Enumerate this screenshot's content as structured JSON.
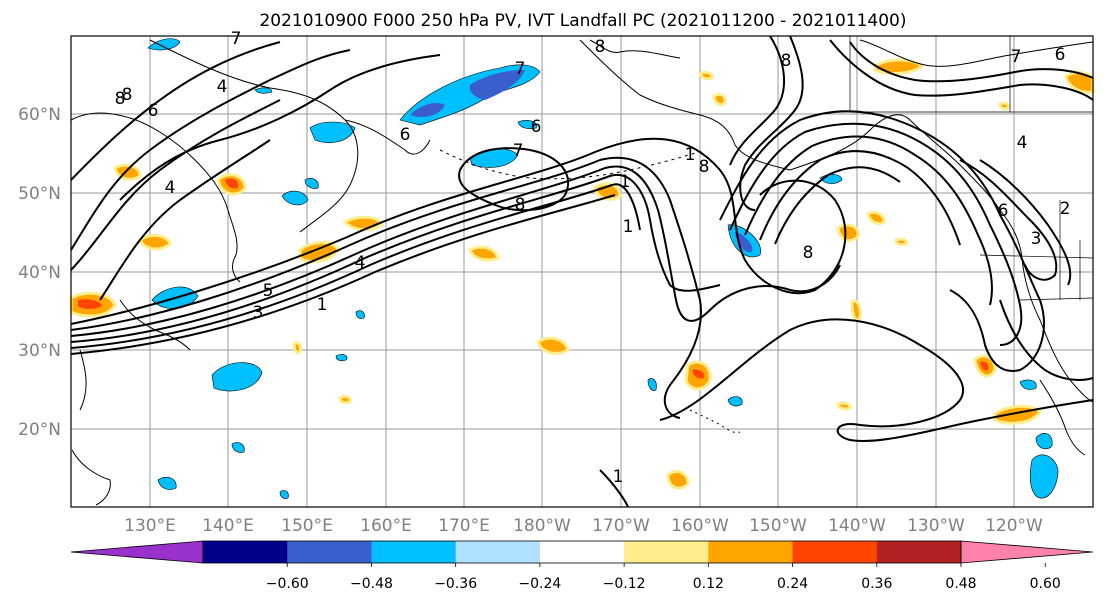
{
  "title": "2021010900 F000 250 hPa PV, IVT Landfall PC (2021011200 - 2021011400)",
  "map": {
    "lat_labels": [
      "60°N",
      "50°N",
      "40°N",
      "30°N",
      "20°N"
    ],
    "lon_labels": [
      "130°E",
      "140°E",
      "150°E",
      "160°E",
      "170°E",
      "180°W",
      "170°W",
      "160°W",
      "150°W",
      "140°W",
      "130°W",
      "120°W"
    ],
    "contour_labels": [
      "6",
      "7",
      "8",
      "8",
      "8",
      "4",
      "7",
      "6",
      "7",
      "6",
      "8",
      "1",
      "1",
      "8",
      "6",
      "4",
      "3",
      "4",
      "2",
      "1",
      "5",
      "4",
      "3",
      "1",
      "8",
      "1",
      "7",
      "6",
      "8"
    ],
    "colors": {
      "ocean": "#ffffff",
      "grid": "#9a9a9a",
      "contour": "#000000",
      "label_gray": "#808080"
    }
  },
  "colorbar": {
    "colors": [
      "#9932cc",
      "#00008b",
      "#3a5fcd",
      "#00bfff",
      "#b0e2ff",
      "#ffffff",
      "#ffec8b",
      "#ffa500",
      "#ff4500",
      "#b22222",
      "#ff82ab"
    ],
    "tick_labels": [
      "−0.60",
      "−0.48",
      "−0.36",
      "−0.24",
      "−0.12",
      "0.12",
      "0.24",
      "0.36",
      "0.48",
      "0.60"
    ]
  }
}
